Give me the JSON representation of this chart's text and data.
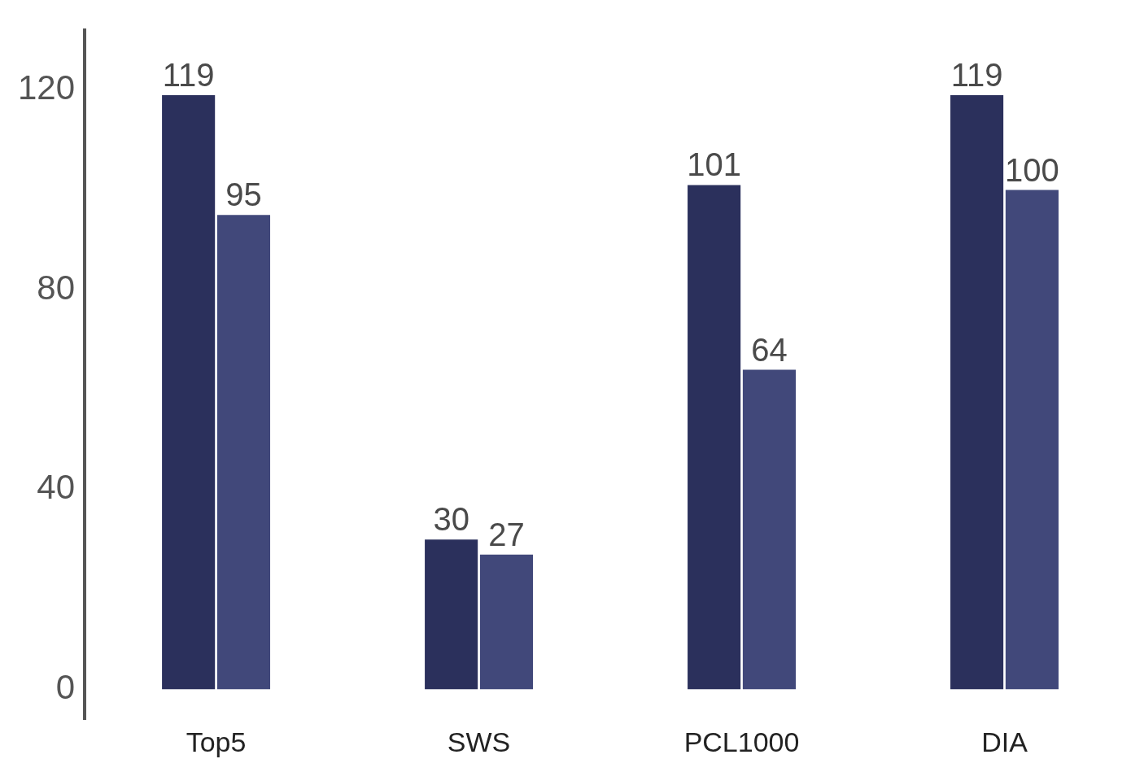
{
  "chart_data": {
    "type": "bar",
    "categories": [
      "Top5",
      "SWS",
      "PCL1000",
      "DIA"
    ],
    "series": [
      {
        "color": "#2b305c",
        "values": [
          119,
          30,
          101,
          119
        ]
      },
      {
        "color": "#41487a",
        "values": [
          95,
          27,
          64,
          100
        ]
      }
    ],
    "ylim": [
      -6,
      132
    ],
    "yticks": [
      0,
      40,
      80,
      120
    ],
    "grid": false,
    "legend": false,
    "data_labels": true
  }
}
